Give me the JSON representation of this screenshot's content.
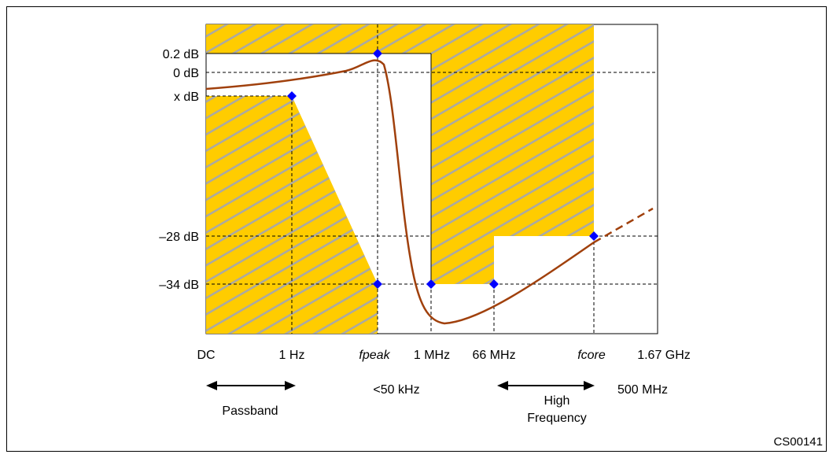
{
  "figure_id": "CS00141",
  "y_labels": {
    "db_0_2": "0.2 dB",
    "db_0": "0 dB",
    "db_x": "x dB",
    "db_28": "–28 dB",
    "db_34": "–34 dB"
  },
  "x_labels": {
    "dc": "DC",
    "hz_1": "1 Hz",
    "fpeak": "fpeak",
    "mhz_1": "1 MHz",
    "mhz_66": "66 MHz",
    "fcore": "fcore",
    "ghz_1_67": "1.67 GHz"
  },
  "annotations": {
    "passband": "Passband",
    "lt_50khz": "<50 kHz",
    "high_frequency_line1": "High",
    "high_frequency_line2": "Frequency",
    "mhz_500": "500 MHz"
  },
  "colors": {
    "mask_fill": "#FFCC00",
    "hatch": "#A8A8A8",
    "response_curve": "#A0400C",
    "marker": "#0000FF",
    "border": "#000000"
  }
}
